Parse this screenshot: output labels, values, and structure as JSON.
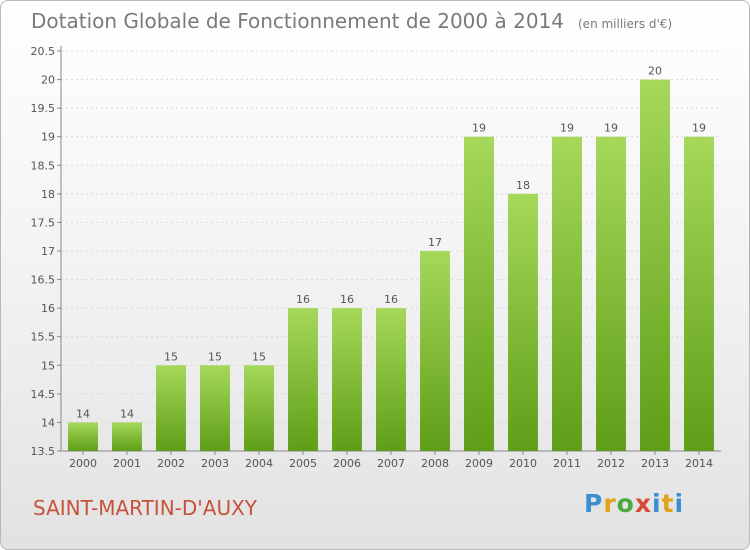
{
  "header": {
    "title": "Dotation Globale de Fonctionnement de 2000 à 2014",
    "unit": "(en milliers d'€)"
  },
  "commune": "SAINT-MARTIN-D'AUXY",
  "logo": "Proxiti",
  "colors": {
    "bar_top": "#a6d85a",
    "bar_bottom": "#5e9e18",
    "title": "#7a7a7a",
    "commune": "#c8513c"
  },
  "chart_data": {
    "type": "bar",
    "title": "Dotation Globale de Fonctionnement de 2000 à 2014",
    "subtitle": "(en milliers d'€)",
    "categories": [
      "2000",
      "2001",
      "2002",
      "2003",
      "2004",
      "2005",
      "2006",
      "2007",
      "2008",
      "2009",
      "2010",
      "2011",
      "2012",
      "2013",
      "2014"
    ],
    "values": [
      14,
      14,
      15,
      15,
      15,
      16,
      16,
      16,
      17,
      19,
      18,
      19,
      19,
      20,
      19
    ],
    "labels": [
      "14",
      "14",
      "15",
      "15",
      "15",
      "16",
      "16",
      "16",
      "17",
      "19",
      "18",
      "19",
      "19",
      "20",
      "19"
    ],
    "ylim": [
      13.5,
      20.5
    ],
    "yticks": [
      "13.5",
      "14",
      "14.5",
      "15",
      "15.5",
      "16",
      "16.5",
      "17",
      "17.5",
      "18",
      "18.5",
      "19",
      "19.5",
      "20",
      "20.5"
    ],
    "grid": true,
    "legend": "none"
  }
}
